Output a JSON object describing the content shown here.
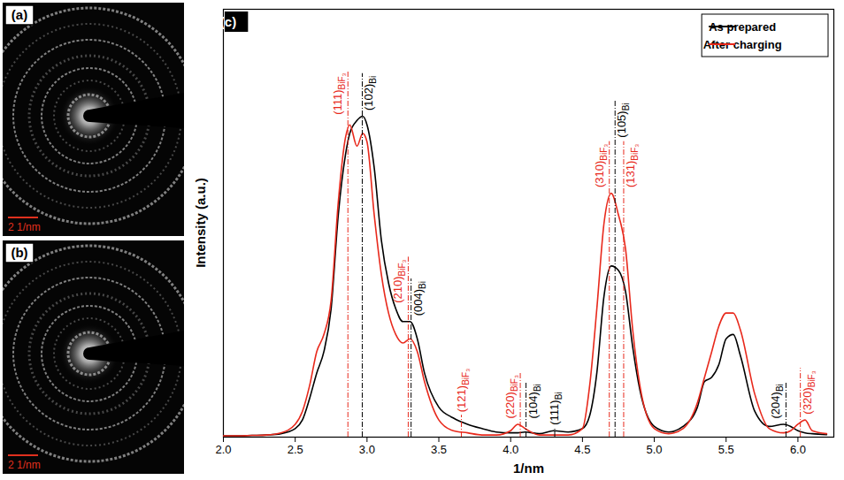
{
  "images": [
    {
      "panel": "(a)",
      "scale_bar": "2 1/nm"
    },
    {
      "panel": "(b)",
      "scale_bar": "2 1/nm"
    }
  ],
  "chart_data": {
    "type": "line",
    "panel": "(c)",
    "x_label": "1/nm",
    "y_label": "Intensity (a.u.)",
    "xlim": [
      2.0,
      6.25
    ],
    "xticks": [
      {
        "value": 2,
        "label": "2.0"
      },
      2.5,
      {
        "value": 3,
        "label": "3.0"
      },
      3.5,
      {
        "value": 4,
        "label": "4.0"
      },
      4.5,
      {
        "value": 5,
        "label": "5.0"
      },
      5.5,
      {
        "value": 6,
        "label": "6.0"
      }
    ],
    "ylim": [
      0,
      100
    ],
    "tick_labels": "x",
    "legend": "top-right",
    "x": [
      2.0,
      2.1,
      2.2,
      2.3,
      2.4,
      2.5,
      2.55,
      2.6,
      2.65,
      2.7,
      2.75,
      2.8,
      2.85,
      2.88,
      2.93,
      2.97,
      3.0,
      3.05,
      3.1,
      3.15,
      3.2,
      3.25,
      3.3,
      3.35,
      3.4,
      3.5,
      3.6,
      3.7,
      3.8,
      3.9,
      4.0,
      4.05,
      4.1,
      4.2,
      4.3,
      4.4,
      4.5,
      4.55,
      4.6,
      4.65,
      4.7,
      4.75,
      4.8,
      4.85,
      4.9,
      5.0,
      5.1,
      5.2,
      5.3,
      5.35,
      5.4,
      5.45,
      5.5,
      5.55,
      5.6,
      5.7,
      5.8,
      5.9,
      5.95,
      6.0,
      6.05,
      6.1,
      6.2
    ],
    "series": [
      {
        "name": "As prepared",
        "color": "#000000",
        "values": [
          0.3,
          0.3,
          0.4,
          0.5,
          0.8,
          2,
          4,
          9,
          15,
          20,
          30,
          52,
          66,
          71,
          74,
          75,
          73,
          63,
          46,
          36,
          30,
          27,
          27,
          23,
          15,
          7,
          4.5,
          3,
          2,
          1.2,
          1,
          1,
          1.2,
          0.8,
          1.5,
          1.2,
          2,
          5,
          15,
          33,
          40,
          39,
          34,
          21,
          11,
          2.5,
          1.2,
          2.5,
          7,
          13,
          14,
          17,
          23,
          24,
          19,
          6,
          2.5,
          3,
          2.5,
          1.5,
          1,
          0.8,
          0.6
        ]
      },
      {
        "name": "After charging",
        "color": "#e8291c",
        "values": [
          0.3,
          0.3,
          0.4,
          0.5,
          1,
          3,
          6,
          12,
          20,
          24,
          32,
          55,
          70,
          73,
          68,
          71,
          69,
          52,
          38,
          29,
          24,
          22,
          23,
          20,
          13,
          4,
          1.5,
          1,
          0.5,
          0.5,
          1.5,
          3,
          2,
          0.5,
          0.5,
          0.5,
          2,
          12,
          30,
          50,
          57,
          52,
          44,
          25,
          12,
          2,
          0.8,
          2,
          8,
          14,
          20,
          26,
          29,
          29,
          25,
          10,
          2,
          1,
          1.5,
          3,
          4,
          1.5,
          0.8
        ]
      }
    ],
    "annotations": [
      {
        "phase": "BiF₃",
        "color": "#e8291c",
        "lines": [
          {
            "x": 2.87,
            "label": "(111)"
          },
          {
            "x": 3.29,
            "label": "(210)"
          },
          {
            "x": 3.66,
            "label": "(121)"
          },
          {
            "x": 4.07,
            "label": "(220)"
          },
          {
            "x": 4.69,
            "label": "(310)"
          },
          {
            "x": 4.79,
            "label": "(131)"
          },
          {
            "x": 6.02,
            "label": "(320)"
          }
        ]
      },
      {
        "phase": "Bi",
        "color": "#000000",
        "lines": [
          {
            "x": 2.97,
            "label": "(102)"
          },
          {
            "x": 3.31,
            "label": "(004)"
          },
          {
            "x": 4.11,
            "label": "(104)"
          },
          {
            "x": 4.31,
            "label": "(111)"
          },
          {
            "x": 4.73,
            "label": "(105)"
          },
          {
            "x": 5.92,
            "label": "(204)"
          }
        ]
      }
    ]
  }
}
